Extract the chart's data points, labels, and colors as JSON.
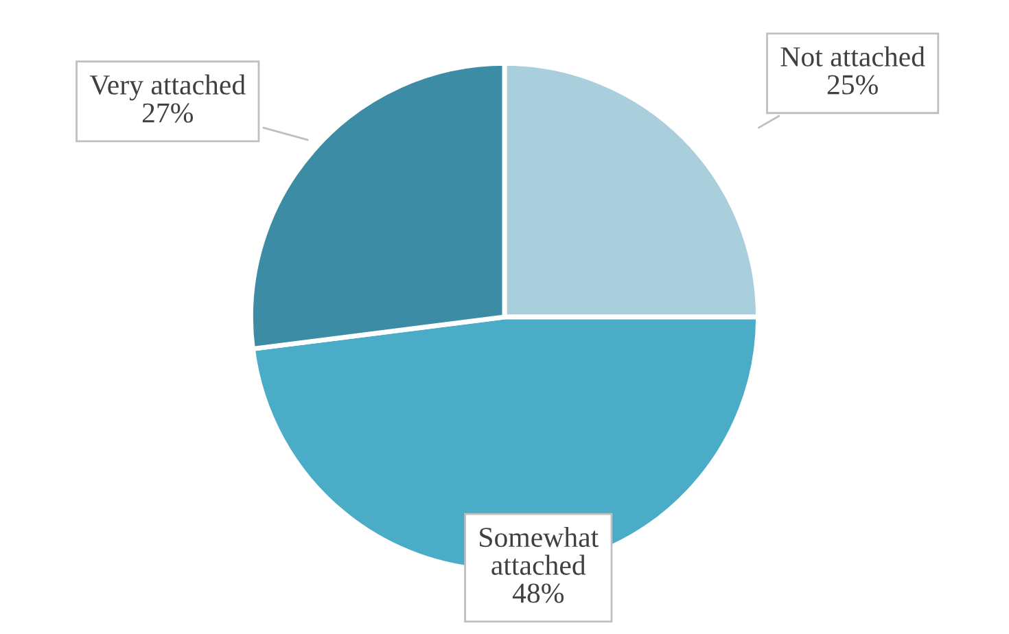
{
  "chart_data": {
    "type": "pie",
    "categories": [
      "Not attached",
      "Somewhat attached",
      "Very attached"
    ],
    "values": [
      25,
      48,
      27
    ],
    "colors": [
      "#a9cfdd",
      "#4aacc6",
      "#3b8ca4"
    ],
    "value_labels": [
      "25%",
      "48%",
      "27%"
    ],
    "legend": false
  }
}
